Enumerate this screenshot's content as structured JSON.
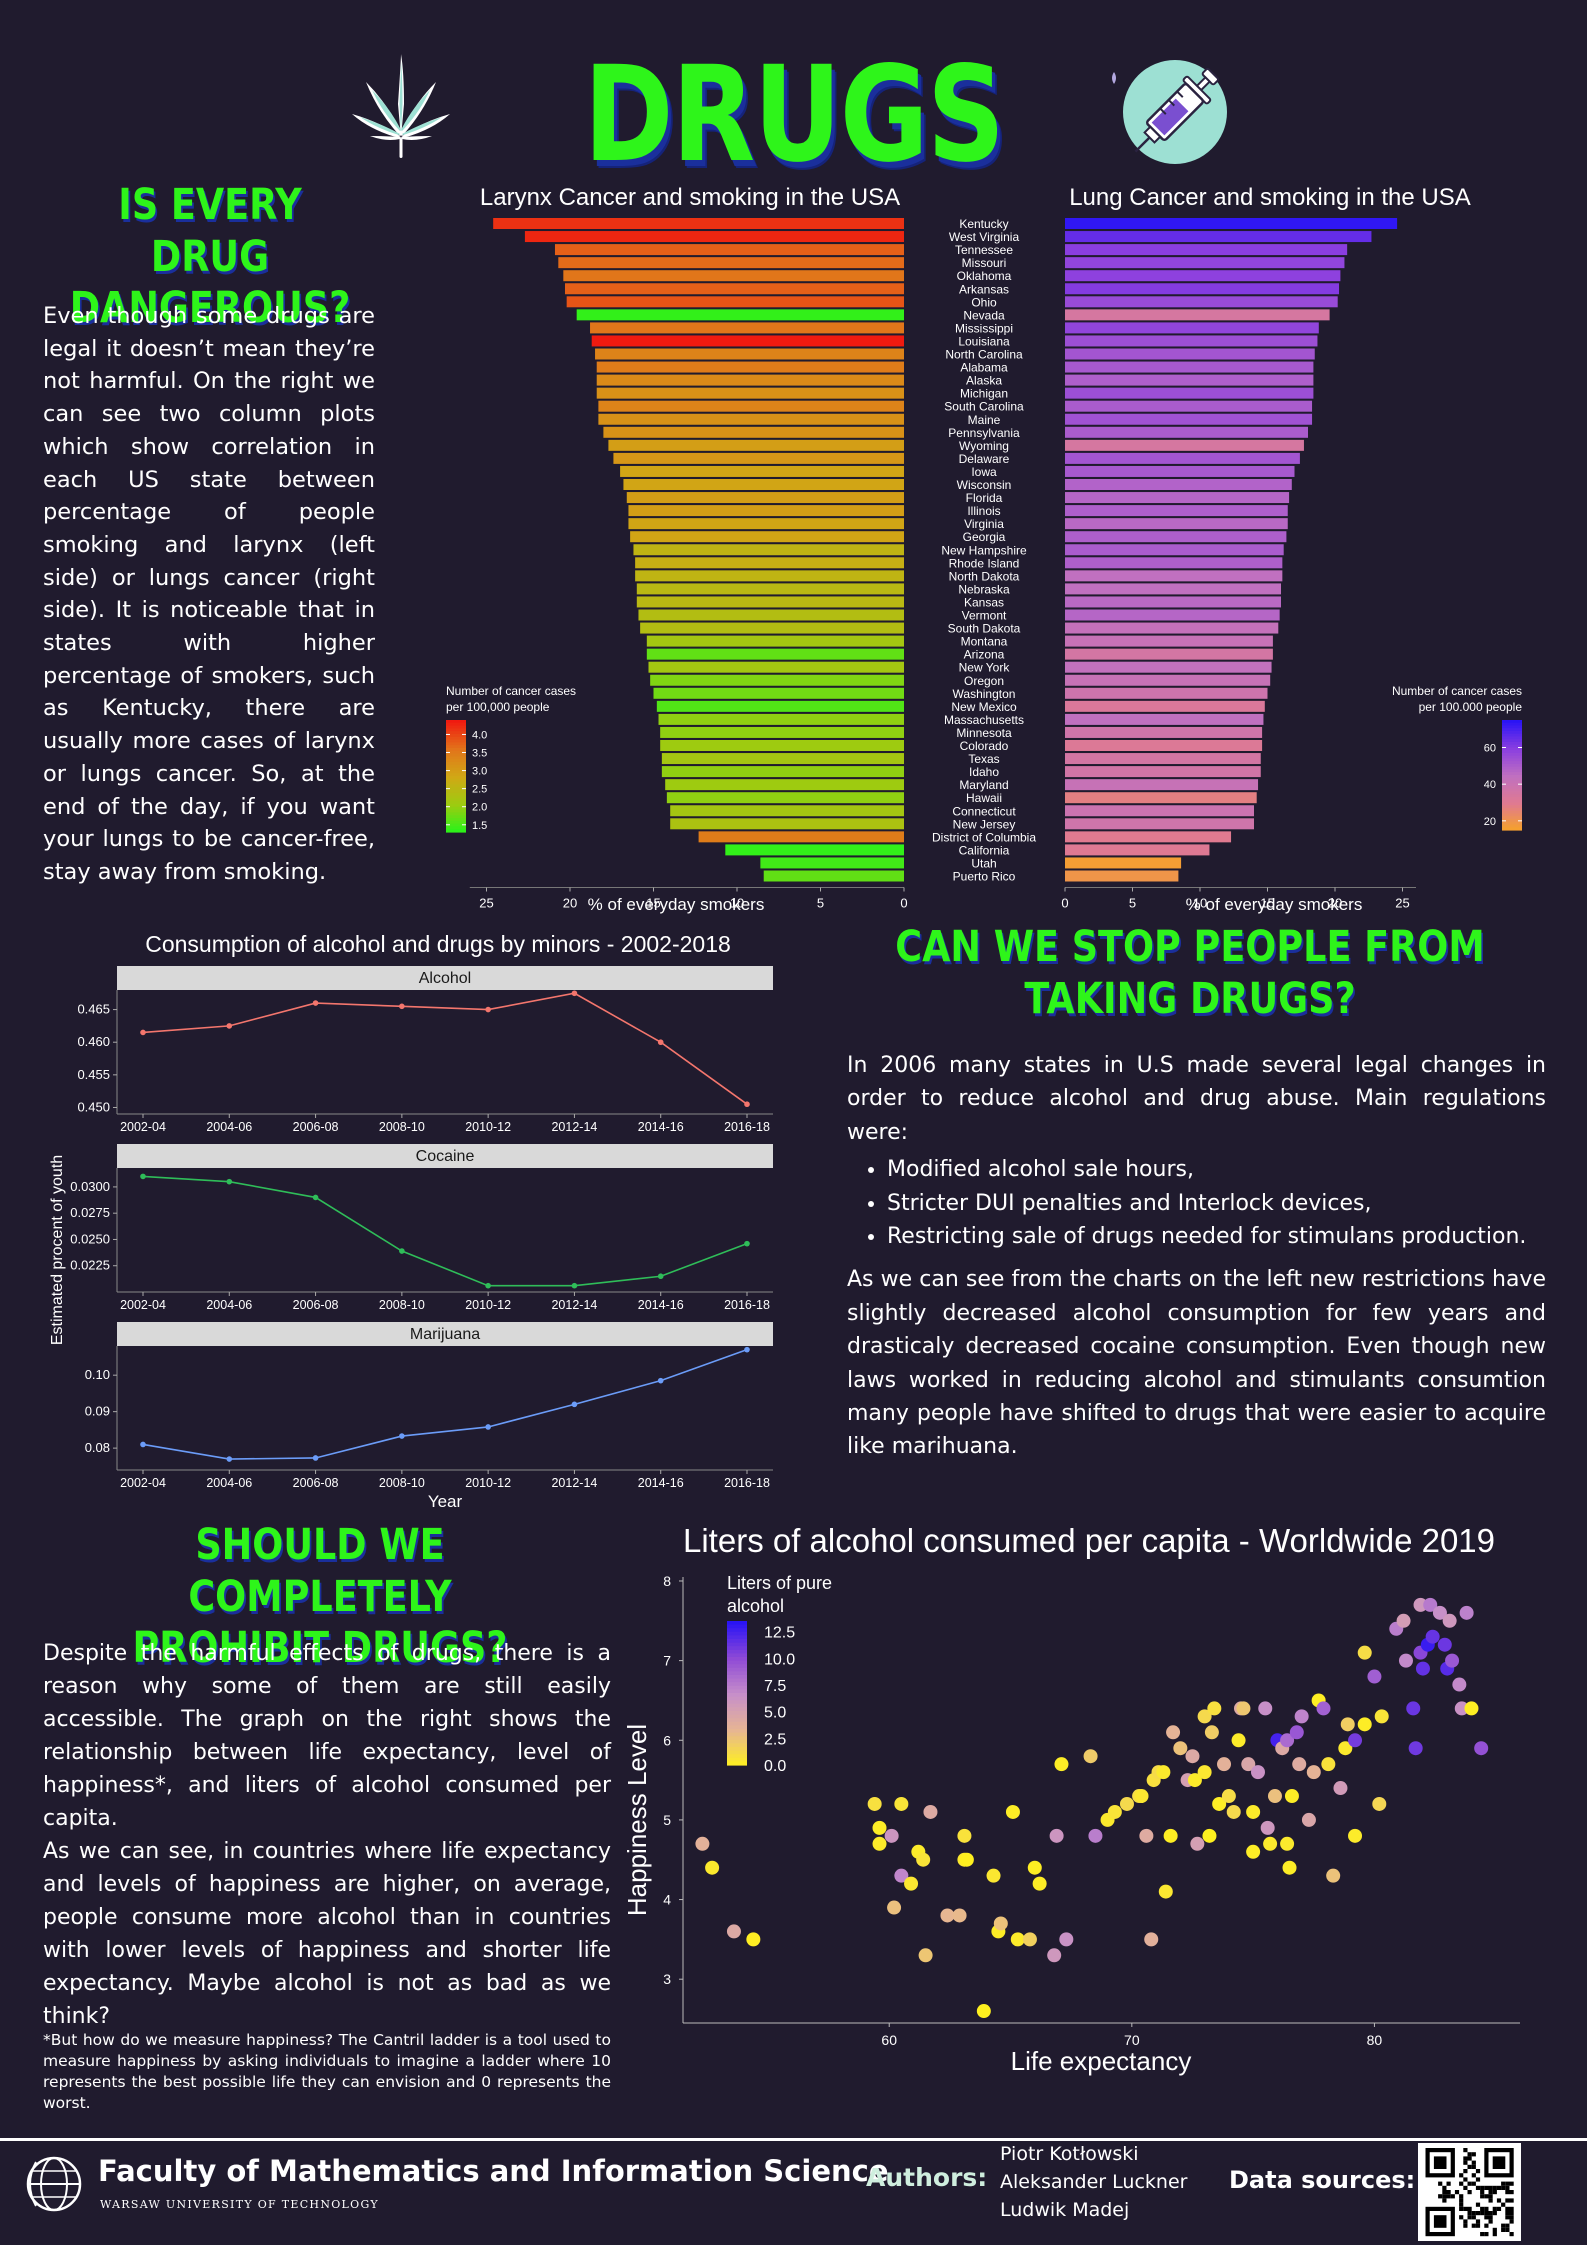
{
  "title": "DRUGS",
  "section1": {
    "heading_l1": "IS EVERY DRUG",
    "heading_l2": "DANGEROUS?",
    "text": "Even though some drugs are legal it doesn’t mean they’re not harmful. On the right we can see two column plots which show correlation in each US state between percentage of people smoking and larynx (left side) or lungs cancer (right side). It is noticeable that in states with higher percentage of smokers, such as Kentucky, there are usually more cases of larynx or lungs cancer. So, at the end of the day, if you want your lungs to be cancer-free, stay away from smoking."
  },
  "section2": {
    "heading_l1": "CAN WE STOP PEOPLE FROM",
    "heading_l2": "TAKING DRUGS?",
    "intro": "In 2006 many states in U.S made several legal changes in order to reduce alcohol and drug abuse. Main regulations were:",
    "bullets": [
      "Modified alcohol sale hours,",
      "Stricter DUI penalties and Interlock devices,",
      "Restricting sale of drugs needed for stimulans production."
    ],
    "outro": "As we can see from the charts on the left new restrictions have slightly decreased alcohol consumption for few years and drasticaly decreased cocaine consumption. Even though new laws worked in reducing alcohol and stimulants consumtion many people have shifted to drugs that were easier to acquire like marihuana."
  },
  "section3": {
    "heading_l1": "SHOULD WE COMPLETELY",
    "heading_l2": "PROHIBIT DRUGS?",
    "p1": "Despite the harmful effects of drugs, there is a reason why some of them are still easily accessible. The graph on the right shows the relationship between life expectancy, level of happiness*, and liters of alcohol consumed per capita.",
    "p2": "As we can see, in countries where life expectancy and levels of happiness are higher, on average, people consume more alcohol than in countries with lower levels of happiness and shorter life expectancy. Maybe alcohol is not as bad as we think?",
    "footnote": "*But how do we measure happiness? The Cantril ladder is a tool used to measure happiness by asking individuals to imagine a ladder where 10 represents the best possible life they can envision and 0 represents the worst."
  },
  "footer": {
    "faculty": "Faculty of Mathematics and Information Science",
    "university": "WARSAW UNIVERSITY OF TECHNOLOGY",
    "authors_label": "Authors:",
    "authors": [
      "Piotr Kotłowski",
      "Aleksander Luckner",
      "Ludwik Madej"
    ],
    "data_sources_label": "Data sources:"
  },
  "chart_data": [
    {
      "type": "bar",
      "title": "Larynx Cancer and smoking in the USA",
      "xlabel": "% of everyday smokers",
      "xlim": [
        0,
        26
      ],
      "xticks": [
        25,
        20,
        15,
        10,
        5,
        0
      ],
      "legend_title": "Number of cancer cases per 100,000 people",
      "legend_ticks": [
        1.5,
        2.0,
        2.5,
        3.0,
        3.5,
        4.0
      ],
      "legend_range": [
        1.3,
        4.4
      ],
      "legend_colors": [
        "#22f51a",
        "#f01a10"
      ],
      "legend_placement": "bottom-left",
      "categories": [
        "Kentucky",
        "West Virginia",
        "Tennessee",
        "Missouri",
        "Oklahoma",
        "Arkansas",
        "Ohio",
        "Nevada",
        "Mississippi",
        "Louisiana",
        "North Carolina",
        "Alabama",
        "Alaska",
        "Michigan",
        "South Carolina",
        "Maine",
        "Pennsylvania",
        "Wyoming",
        "Delaware",
        "Iowa",
        "Wisconsin",
        "Florida",
        "Illinois",
        "Virginia",
        "Georgia",
        "New Hampshire",
        "Rhode Island",
        "North Dakota",
        "Nebraska",
        "Kansas",
        "Vermont",
        "South Dakota",
        "Montana",
        "Arizona",
        "New York",
        "Oregon",
        "Washington",
        "New Mexico",
        "Massachusetts",
        "Minnesota",
        "Colorado",
        "Texas",
        "Idaho",
        "Maryland",
        "Hawaii",
        "Connecticut",
        "New Jersey",
        "District of Columbia",
        "California",
        "Utah",
        "Puerto Rico"
      ],
      "values": [
        24.6,
        22.7,
        20.9,
        20.7,
        20.4,
        20.3,
        20.2,
        19.6,
        18.8,
        18.7,
        18.5,
        18.4,
        18.4,
        18.4,
        18.3,
        18.3,
        18.0,
        17.7,
        17.4,
        17.0,
        16.8,
        16.6,
        16.5,
        16.5,
        16.4,
        16.2,
        16.1,
        16.1,
        16.0,
        16.0,
        15.9,
        15.8,
        15.4,
        15.4,
        15.3,
        15.2,
        15.0,
        14.8,
        14.7,
        14.6,
        14.6,
        14.5,
        14.5,
        14.3,
        14.2,
        14.0,
        14.0,
        12.3,
        10.7,
        8.6,
        8.4
      ],
      "color_values": [
        4.2,
        4.3,
        3.8,
        3.7,
        3.6,
        3.8,
        3.9,
        1.4,
        3.6,
        4.4,
        3.4,
        3.5,
        3.3,
        3.2,
        3.4,
        3.2,
        3.2,
        3.0,
        3.1,
        2.9,
        2.9,
        3.0,
        3.0,
        2.9,
        2.9,
        2.6,
        2.7,
        2.6,
        2.5,
        2.5,
        2.4,
        2.4,
        2.2,
        1.7,
        2.2,
        1.9,
        1.8,
        1.6,
        2.0,
        2.0,
        2.1,
        2.2,
        2.0,
        2.1,
        2.0,
        2.2,
        2.3,
        3.5,
        1.4,
        1.5,
        1.7
      ]
    },
    {
      "type": "bar",
      "title": "Lung Cancer and smoking in the USA",
      "xlabel": "% of everyday smokers",
      "xlim": [
        0,
        26
      ],
      "xticks": [
        0,
        5,
        10,
        15,
        20,
        25
      ],
      "legend_title": "Number of cancer cases per 100.000 people",
      "legend_ticks": [
        20,
        40,
        60
      ],
      "legend_range": [
        15,
        75
      ],
      "legend_colors": [
        "#f7a326",
        "#c07fc5",
        "#4a14f2"
      ],
      "legend_placement": "bottom-right",
      "categories": [
        "Kentucky",
        "West Virginia",
        "Tennessee",
        "Missouri",
        "Oklahoma",
        "Arkansas",
        "Ohio",
        "Nevada",
        "Mississippi",
        "Louisiana",
        "North Carolina",
        "Alabama",
        "Alaska",
        "Michigan",
        "South Carolina",
        "Maine",
        "Pennsylvania",
        "Wyoming",
        "Delaware",
        "Iowa",
        "Wisconsin",
        "Florida",
        "Illinois",
        "Virginia",
        "Georgia",
        "New Hampshire",
        "Rhode Island",
        "North Dakota",
        "Nebraska",
        "Kansas",
        "Vermont",
        "South Dakota",
        "Montana",
        "Arizona",
        "New York",
        "Oregon",
        "Washington",
        "New Mexico",
        "Massachusetts",
        "Minnesota",
        "Colorado",
        "Texas",
        "Idaho",
        "Maryland",
        "Hawaii",
        "Connecticut",
        "New Jersey",
        "District of Columbia",
        "California",
        "Utah",
        "Puerto Rico"
      ],
      "values": [
        24.6,
        22.7,
        20.9,
        20.7,
        20.4,
        20.3,
        20.2,
        19.6,
        18.8,
        18.7,
        18.5,
        18.4,
        18.4,
        18.4,
        18.3,
        18.3,
        18.0,
        17.7,
        17.4,
        17.0,
        16.8,
        16.6,
        16.5,
        16.5,
        16.4,
        16.2,
        16.1,
        16.1,
        16.0,
        16.0,
        15.9,
        15.8,
        15.4,
        15.4,
        15.3,
        15.2,
        15.0,
        14.8,
        14.7,
        14.6,
        14.6,
        14.5,
        14.5,
        14.3,
        14.2,
        14.0,
        14.0,
        12.3,
        10.7,
        8.6,
        8.4
      ],
      "color_values": [
        74,
        66,
        60,
        58,
        59,
        61,
        56,
        35,
        58,
        55,
        53,
        52,
        50,
        55,
        51,
        54,
        51,
        35,
        53,
        52,
        49,
        48,
        50,
        47,
        50,
        51,
        50,
        45,
        45,
        47,
        48,
        43,
        42,
        36,
        44,
        42,
        39,
        33,
        45,
        38,
        32,
        36,
        37,
        42,
        28,
        40,
        38,
        30,
        31,
        17,
        20
      ]
    },
    {
      "type": "line",
      "title": "Consumption of alcohol and drugs by minors - 2002-2018",
      "xlabel": "Year",
      "ylabel": "Estimated procent of youth",
      "categories": [
        "2002-04",
        "2004-06",
        "2006-08",
        "2008-10",
        "2010-12",
        "2012-14",
        "2014-16",
        "2016-18"
      ],
      "panels": [
        {
          "name": "Alcohol",
          "color": "#f4766d",
          "ylim": [
            0.449,
            0.468
          ],
          "yticks": [
            0.45,
            0.455,
            0.46,
            0.465
          ],
          "ytick_labels": [
            "0.450",
            "0.455",
            "0.460",
            "0.465"
          ],
          "values": [
            0.4615,
            0.4625,
            0.466,
            0.4655,
            0.465,
            0.4675,
            0.46,
            0.4505
          ]
        },
        {
          "name": "Cocaine",
          "color": "#2fbd59",
          "ylim": [
            0.02,
            0.0318
          ],
          "yticks": [
            0.0225,
            0.025,
            0.0275,
            0.03
          ],
          "ytick_labels": [
            "0.0225",
            "0.0250",
            "0.0275",
            "0.0300"
          ],
          "values": [
            0.031,
            0.0305,
            0.029,
            0.0239,
            0.0206,
            0.0206,
            0.0215,
            0.0246
          ]
        },
        {
          "name": "Marijuana",
          "color": "#6b9cf8",
          "ylim": [
            0.074,
            0.108
          ],
          "yticks": [
            0.08,
            0.09,
            0.1
          ],
          "ytick_labels": [
            "0.08",
            "0.09",
            "0.10"
          ],
          "values": [
            0.081,
            0.077,
            0.0773,
            0.0833,
            0.0858,
            0.092,
            0.0985,
            0.107
          ]
        }
      ]
    },
    {
      "type": "scatter",
      "title": "Liters of alcohol consumed per capita - Worldwide 2019",
      "xlabel": "Life expectancy",
      "ylabel": "Happiness Level",
      "xlim": [
        51.5,
        86
      ],
      "ylim": [
        2.45,
        8.05
      ],
      "xticks": [
        60,
        70,
        80
      ],
      "yticks": [
        3,
        4,
        5,
        6,
        7,
        8
      ],
      "legend_title": "Liters of pure alcohol",
      "legend_ticks": [
        0.0,
        2.5,
        5.0,
        7.5,
        10.0,
        12.5
      ],
      "legend_tick_labels": [
        "0.0",
        "2.5",
        "5.0",
        "7.5",
        "10.0",
        "12.5"
      ],
      "legend_range": [
        0,
        13.5
      ],
      "legend_colors": [
        "#fff21c",
        "#e7b692",
        "#c78fc9",
        "#8f4ad6",
        "#2a14f5"
      ],
      "legend_placement": "top-left",
      "points": [
        [
          52.3,
          4.7,
          3.8
        ],
        [
          52.7,
          4.4,
          0.5
        ],
        [
          53.6,
          3.6,
          4.5
        ],
        [
          54.4,
          3.5,
          0.2
        ],
        [
          59.4,
          5.2,
          1.0
        ],
        [
          59.6,
          4.9,
          0.3
        ],
        [
          59.6,
          4.7,
          0.4
        ],
        [
          60.1,
          4.8,
          6.2
        ],
        [
          60.2,
          3.9,
          2.8
        ],
        [
          60.5,
          4.3,
          7.2
        ],
        [
          60.5,
          5.2,
          0.8
        ],
        [
          60.9,
          4.2,
          0.6
        ],
        [
          61.2,
          4.6,
          0.4
        ],
        [
          61.4,
          4.5,
          0.8
        ],
        [
          61.5,
          3.3,
          2.5
        ],
        [
          61.7,
          5.1,
          4.4
        ],
        [
          62.4,
          3.8,
          3.4
        ],
        [
          62.9,
          3.8,
          3.2
        ],
        [
          63.1,
          4.8,
          0.9
        ],
        [
          63.1,
          4.5,
          0.5
        ],
        [
          63.2,
          4.5,
          0.1
        ],
        [
          63.9,
          2.6,
          0.1
        ],
        [
          64.3,
          4.3,
          0.6
        ],
        [
          64.5,
          3.6,
          0.3
        ],
        [
          64.6,
          3.7,
          2.7
        ],
        [
          65.1,
          5.1,
          0.3
        ],
        [
          65.3,
          3.5,
          0.4
        ],
        [
          65.8,
          3.5,
          1.9
        ],
        [
          66.0,
          4.4,
          0.2
        ],
        [
          66.2,
          4.2,
          0.3
        ],
        [
          66.8,
          3.3,
          6.0
        ],
        [
          66.9,
          4.8,
          6.2
        ],
        [
          67.1,
          5.7,
          0.3
        ],
        [
          67.3,
          3.5,
          6.5
        ],
        [
          68.3,
          5.8,
          2.2
        ],
        [
          68.5,
          4.8,
          7.6
        ],
        [
          69.0,
          5.0,
          0.5
        ],
        [
          69.3,
          5.1,
          0.8
        ],
        [
          69.8,
          5.2,
          1.4
        ],
        [
          70.3,
          5.3,
          1.2
        ],
        [
          70.4,
          5.3,
          0.6
        ],
        [
          70.6,
          4.8,
          4.3
        ],
        [
          70.8,
          3.5,
          3.9
        ],
        [
          70.9,
          5.5,
          1.0
        ],
        [
          71.1,
          5.6,
          1.3
        ],
        [
          71.3,
          5.6,
          0.5
        ],
        [
          71.4,
          4.1,
          0.6
        ],
        [
          71.6,
          4.8,
          0.2
        ],
        [
          71.7,
          6.1,
          3.6
        ],
        [
          72.0,
          5.9,
          2.7
        ],
        [
          72.3,
          5.5,
          5.3
        ],
        [
          72.5,
          5.8,
          4.5
        ],
        [
          72.6,
          5.5,
          0.4
        ],
        [
          72.7,
          4.7,
          5.4
        ],
        [
          73.0,
          5.6,
          0.6
        ],
        [
          73.0,
          6.3,
          1.4
        ],
        [
          73.2,
          4.8,
          0.1
        ],
        [
          73.3,
          6.1,
          2.1
        ],
        [
          73.4,
          6.4,
          1.0
        ],
        [
          73.6,
          5.2,
          0.3
        ],
        [
          73.8,
          5.7,
          3.8
        ],
        [
          74.0,
          5.3,
          1.2
        ],
        [
          74.2,
          5.1,
          1.4
        ],
        [
          74.4,
          6.0,
          0.4
        ],
        [
          74.5,
          6.4,
          4.5
        ],
        [
          74.6,
          6.4,
          2.4
        ],
        [
          74.8,
          5.7,
          4.8
        ],
        [
          75.0,
          5.1,
          0.4
        ],
        [
          75.0,
          4.6,
          0.3
        ],
        [
          75.2,
          5.6,
          6.5
        ],
        [
          75.5,
          6.4,
          6.7
        ],
        [
          75.6,
          4.9,
          6.1
        ],
        [
          75.7,
          4.7,
          0.5
        ],
        [
          75.9,
          5.3,
          2.8
        ],
        [
          76.0,
          6.0,
          12.6
        ],
        [
          76.2,
          5.9,
          4.5
        ],
        [
          76.4,
          6.0,
          8.5
        ],
        [
          76.4,
          4.7,
          0.5
        ],
        [
          76.5,
          4.4,
          0.3
        ],
        [
          76.6,
          5.3,
          0.3
        ],
        [
          76.8,
          6.1,
          9.5
        ],
        [
          76.9,
          5.7,
          4.3
        ],
        [
          77.0,
          6.3,
          7.3
        ],
        [
          77.3,
          5.0,
          4.8
        ],
        [
          77.5,
          5.6,
          3.6
        ],
        [
          77.7,
          6.5,
          0.2
        ],
        [
          77.9,
          6.4,
          9.0
        ],
        [
          78.1,
          5.7,
          0.9
        ],
        [
          78.3,
          4.3,
          2.7
        ],
        [
          78.6,
          5.4,
          5.7
        ],
        [
          78.8,
          5.9,
          0.5
        ],
        [
          78.9,
          6.2,
          2.0
        ],
        [
          79.2,
          4.8,
          0.4
        ],
        [
          79.2,
          6.0,
          11.0
        ],
        [
          79.6,
          6.2,
          0.3
        ],
        [
          79.6,
          7.1,
          1.2
        ],
        [
          80.0,
          6.8,
          9.1
        ],
        [
          80.2,
          5.2,
          1.6
        ],
        [
          80.3,
          6.3,
          0.8
        ],
        [
          80.9,
          7.4,
          7.6
        ],
        [
          81.2,
          7.5,
          5.5
        ],
        [
          81.3,
          7.0,
          7.0
        ],
        [
          81.6,
          6.4,
          11.4
        ],
        [
          81.7,
          5.9,
          11.2
        ],
        [
          81.9,
          7.7,
          6.0
        ],
        [
          81.9,
          7.1,
          10.3
        ],
        [
          82.0,
          6.9,
          11.6
        ],
        [
          82.2,
          7.2,
          13.0
        ],
        [
          82.3,
          7.7,
          7.8
        ],
        [
          82.4,
          7.3,
          11.5
        ],
        [
          82.7,
          7.6,
          6.7
        ],
        [
          82.9,
          7.2,
          11.3
        ],
        [
          83.0,
          6.9,
          12.0
        ],
        [
          83.1,
          7.5,
          6.0
        ],
        [
          83.2,
          7.0,
          9.4
        ],
        [
          83.5,
          6.7,
          7.0
        ],
        [
          83.6,
          6.4,
          6.5
        ],
        [
          83.8,
          7.6,
          7.4
        ],
        [
          84.0,
          6.4,
          0.2
        ],
        [
          84.4,
          5.9,
          9.8
        ]
      ]
    }
  ]
}
